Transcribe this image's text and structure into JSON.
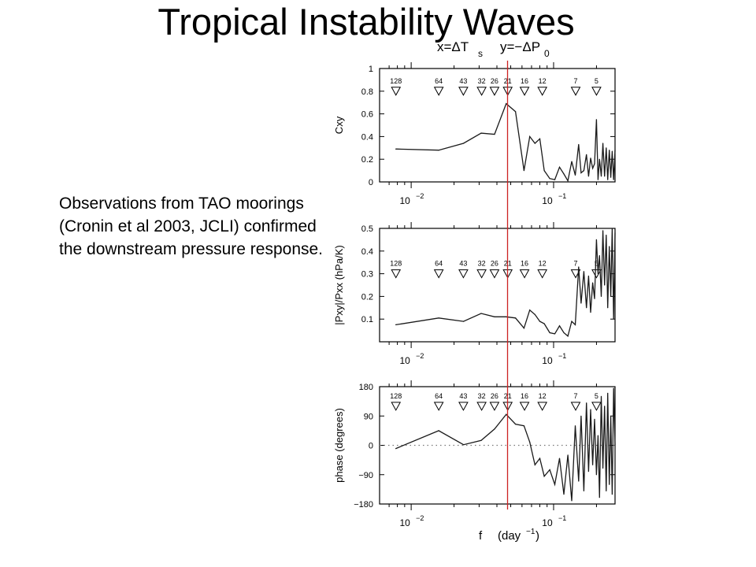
{
  "slide": {
    "title": "Tropical Instability Waves",
    "body_text": "Observations from TAO moorings (Cronin et al 2003, JCLI) confirmed the downstream pressure response."
  },
  "chart_data": {
    "type": "line",
    "figure_header": {
      "x_def": "x=ΔT",
      "x_sub": "s",
      "y_def": "y=−ΔP",
      "y_sub": "0"
    },
    "x_axis": {
      "scale": "log",
      "label": "f",
      "unit": "(day",
      "unit_exp": "−1",
      "unit_close": ")",
      "range": [
        0.006,
        0.27
      ],
      "ticks": [
        0.01,
        0.1
      ]
    },
    "period_markers": [
      128,
      64,
      43,
      32,
      26,
      21,
      16,
      12,
      7,
      5
    ],
    "red_line": {
      "color": "#cc2222",
      "x": 0.0475
    },
    "line_color": "#1a1a1a",
    "panels": [
      {
        "ylabel": "Cxy",
        "ylim": [
          0,
          1
        ],
        "yticks": [
          "0",
          "0.2",
          "0.4",
          "0.6",
          "0.8",
          "1"
        ],
        "marker_y": 0.8,
        "series": [
          {
            "x": 0.0078,
            "y": 0.29
          },
          {
            "x": 0.0156,
            "y": 0.28
          },
          {
            "x": 0.0233,
            "y": 0.34
          },
          {
            "x": 0.031,
            "y": 0.43
          },
          {
            "x": 0.0385,
            "y": 0.42
          },
          {
            "x": 0.0465,
            "y": 0.69
          },
          {
            "x": 0.054,
            "y": 0.62
          },
          {
            "x": 0.062,
            "y": 0.1
          },
          {
            "x": 0.068,
            "y": 0.4
          },
          {
            "x": 0.074,
            "y": 0.34
          },
          {
            "x": 0.08,
            "y": 0.38
          },
          {
            "x": 0.086,
            "y": 0.1
          },
          {
            "x": 0.094,
            "y": 0.03
          },
          {
            "x": 0.102,
            "y": 0.02
          },
          {
            "x": 0.11,
            "y": 0.13
          },
          {
            "x": 0.118,
            "y": 0.07
          },
          {
            "x": 0.126,
            "y": 0.01
          },
          {
            "x": 0.134,
            "y": 0.18
          },
          {
            "x": 0.142,
            "y": 0.06
          },
          {
            "x": 0.15,
            "y": 0.33
          },
          {
            "x": 0.156,
            "y": 0.08
          },
          {
            "x": 0.163,
            "y": 0.1
          },
          {
            "x": 0.17,
            "y": 0.24
          },
          {
            "x": 0.176,
            "y": 0.05
          },
          {
            "x": 0.182,
            "y": 0.21
          },
          {
            "x": 0.188,
            "y": 0.12
          },
          {
            "x": 0.194,
            "y": 0.16
          },
          {
            "x": 0.2,
            "y": 0.55
          },
          {
            "x": 0.205,
            "y": 0.02
          },
          {
            "x": 0.21,
            "y": 0.2
          },
          {
            "x": 0.216,
            "y": 0.05
          },
          {
            "x": 0.222,
            "y": 0.34
          },
          {
            "x": 0.228,
            "y": 0.05
          },
          {
            "x": 0.234,
            "y": 0.3
          },
          {
            "x": 0.24,
            "y": 0.02
          },
          {
            "x": 0.246,
            "y": 0.28
          },
          {
            "x": 0.252,
            "y": 0.04
          },
          {
            "x": 0.258,
            "y": 0.27
          },
          {
            "x": 0.264,
            "y": 0.02
          },
          {
            "x": 0.27,
            "y": 0.28
          }
        ]
      },
      {
        "ylabel": "|Pxy|/Pxx  (hPa/K)",
        "ylim": [
          0,
          0.5
        ],
        "yticks": [
          "0.1",
          "0.2",
          "0.3",
          "0.4",
          "0.5"
        ],
        "marker_y": 0.3,
        "series": [
          {
            "x": 0.0078,
            "y": 0.075
          },
          {
            "x": 0.0156,
            "y": 0.105
          },
          {
            "x": 0.0233,
            "y": 0.09
          },
          {
            "x": 0.031,
            "y": 0.125
          },
          {
            "x": 0.0385,
            "y": 0.11
          },
          {
            "x": 0.0465,
            "y": 0.11
          },
          {
            "x": 0.054,
            "y": 0.105
          },
          {
            "x": 0.062,
            "y": 0.06
          },
          {
            "x": 0.068,
            "y": 0.14
          },
          {
            "x": 0.074,
            "y": 0.12
          },
          {
            "x": 0.08,
            "y": 0.09
          },
          {
            "x": 0.086,
            "y": 0.08
          },
          {
            "x": 0.094,
            "y": 0.04
          },
          {
            "x": 0.102,
            "y": 0.035
          },
          {
            "x": 0.11,
            "y": 0.07
          },
          {
            "x": 0.118,
            "y": 0.04
          },
          {
            "x": 0.126,
            "y": 0.025
          },
          {
            "x": 0.134,
            "y": 0.09
          },
          {
            "x": 0.142,
            "y": 0.075
          },
          {
            "x": 0.15,
            "y": 0.33
          },
          {
            "x": 0.156,
            "y": 0.17
          },
          {
            "x": 0.163,
            "y": 0.31
          },
          {
            "x": 0.17,
            "y": 0.15
          },
          {
            "x": 0.176,
            "y": 0.29
          },
          {
            "x": 0.182,
            "y": 0.13
          },
          {
            "x": 0.188,
            "y": 0.26
          },
          {
            "x": 0.194,
            "y": 0.19
          },
          {
            "x": 0.2,
            "y": 0.45
          },
          {
            "x": 0.205,
            "y": 0.3
          },
          {
            "x": 0.21,
            "y": 0.38
          },
          {
            "x": 0.216,
            "y": 0.2
          },
          {
            "x": 0.222,
            "y": 0.49
          },
          {
            "x": 0.228,
            "y": 0.25
          },
          {
            "x": 0.234,
            "y": 0.47
          },
          {
            "x": 0.24,
            "y": 0.15
          },
          {
            "x": 0.246,
            "y": 0.42
          },
          {
            "x": 0.252,
            "y": 0.2
          },
          {
            "x": 0.258,
            "y": 0.5
          },
          {
            "x": 0.264,
            "y": 0.1
          },
          {
            "x": 0.27,
            "y": 0.48
          }
        ]
      },
      {
        "ylabel": "phase  (degrees)",
        "ylim": [
          -180,
          180
        ],
        "yticks": [
          "−180",
          "−90",
          "0",
          "90",
          "180"
        ],
        "marker_y": 120,
        "zero_line": true,
        "series": [
          {
            "x": 0.0078,
            "y": -10
          },
          {
            "x": 0.0156,
            "y": 45
          },
          {
            "x": 0.0233,
            "y": 2
          },
          {
            "x": 0.031,
            "y": 15
          },
          {
            "x": 0.0385,
            "y": 50
          },
          {
            "x": 0.0465,
            "y": 95
          },
          {
            "x": 0.054,
            "y": 65
          },
          {
            "x": 0.062,
            "y": 60
          },
          {
            "x": 0.068,
            "y": 10
          },
          {
            "x": 0.074,
            "y": -60
          },
          {
            "x": 0.08,
            "y": -40
          },
          {
            "x": 0.086,
            "y": -95
          },
          {
            "x": 0.094,
            "y": -75
          },
          {
            "x": 0.102,
            "y": -120
          },
          {
            "x": 0.11,
            "y": -40
          },
          {
            "x": 0.118,
            "y": -150
          },
          {
            "x": 0.126,
            "y": -30
          },
          {
            "x": 0.134,
            "y": -170
          },
          {
            "x": 0.142,
            "y": 60
          },
          {
            "x": 0.15,
            "y": -110
          },
          {
            "x": 0.156,
            "y": 90
          },
          {
            "x": 0.163,
            "y": -140
          },
          {
            "x": 0.17,
            "y": 130
          },
          {
            "x": 0.176,
            "y": -80
          },
          {
            "x": 0.182,
            "y": 110
          },
          {
            "x": 0.188,
            "y": -60
          },
          {
            "x": 0.194,
            "y": 80
          },
          {
            "x": 0.2,
            "y": -90
          },
          {
            "x": 0.205,
            "y": 30
          },
          {
            "x": 0.21,
            "y": -160
          },
          {
            "x": 0.216,
            "y": 150
          },
          {
            "x": 0.222,
            "y": -70
          },
          {
            "x": 0.228,
            "y": 120
          },
          {
            "x": 0.234,
            "y": -140
          },
          {
            "x": 0.24,
            "y": 160
          },
          {
            "x": 0.246,
            "y": -120
          },
          {
            "x": 0.252,
            "y": 90
          },
          {
            "x": 0.258,
            "y": -150
          },
          {
            "x": 0.264,
            "y": 175
          },
          {
            "x": 0.27,
            "y": 0
          }
        ]
      }
    ]
  }
}
